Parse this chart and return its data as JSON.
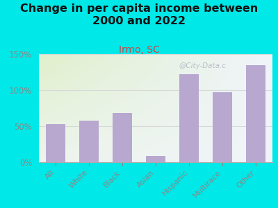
{
  "title": "Change in per capita income between\n2000 and 2022",
  "subtitle": "Irmo, SC",
  "categories": [
    "All",
    "White",
    "Black",
    "Asian",
    "Hispanic",
    "Multirace",
    "Other"
  ],
  "values": [
    53,
    58,
    68,
    9,
    122,
    97,
    135
  ],
  "bar_color": "#b8a8d0",
  "background_outer": "#00e8e8",
  "ylim": [
    0,
    150
  ],
  "yticks": [
    0,
    50,
    100,
    150
  ],
  "ytick_labels": [
    "0%",
    "50%",
    "100%",
    "150%"
  ],
  "title_fontsize": 11.5,
  "subtitle_fontsize": 10,
  "subtitle_color": "#cc4444",
  "watermark": "@City-Data.c",
  "title_color": "#111111",
  "tick_color": "#888888",
  "grid_color": "#d8d8d8"
}
